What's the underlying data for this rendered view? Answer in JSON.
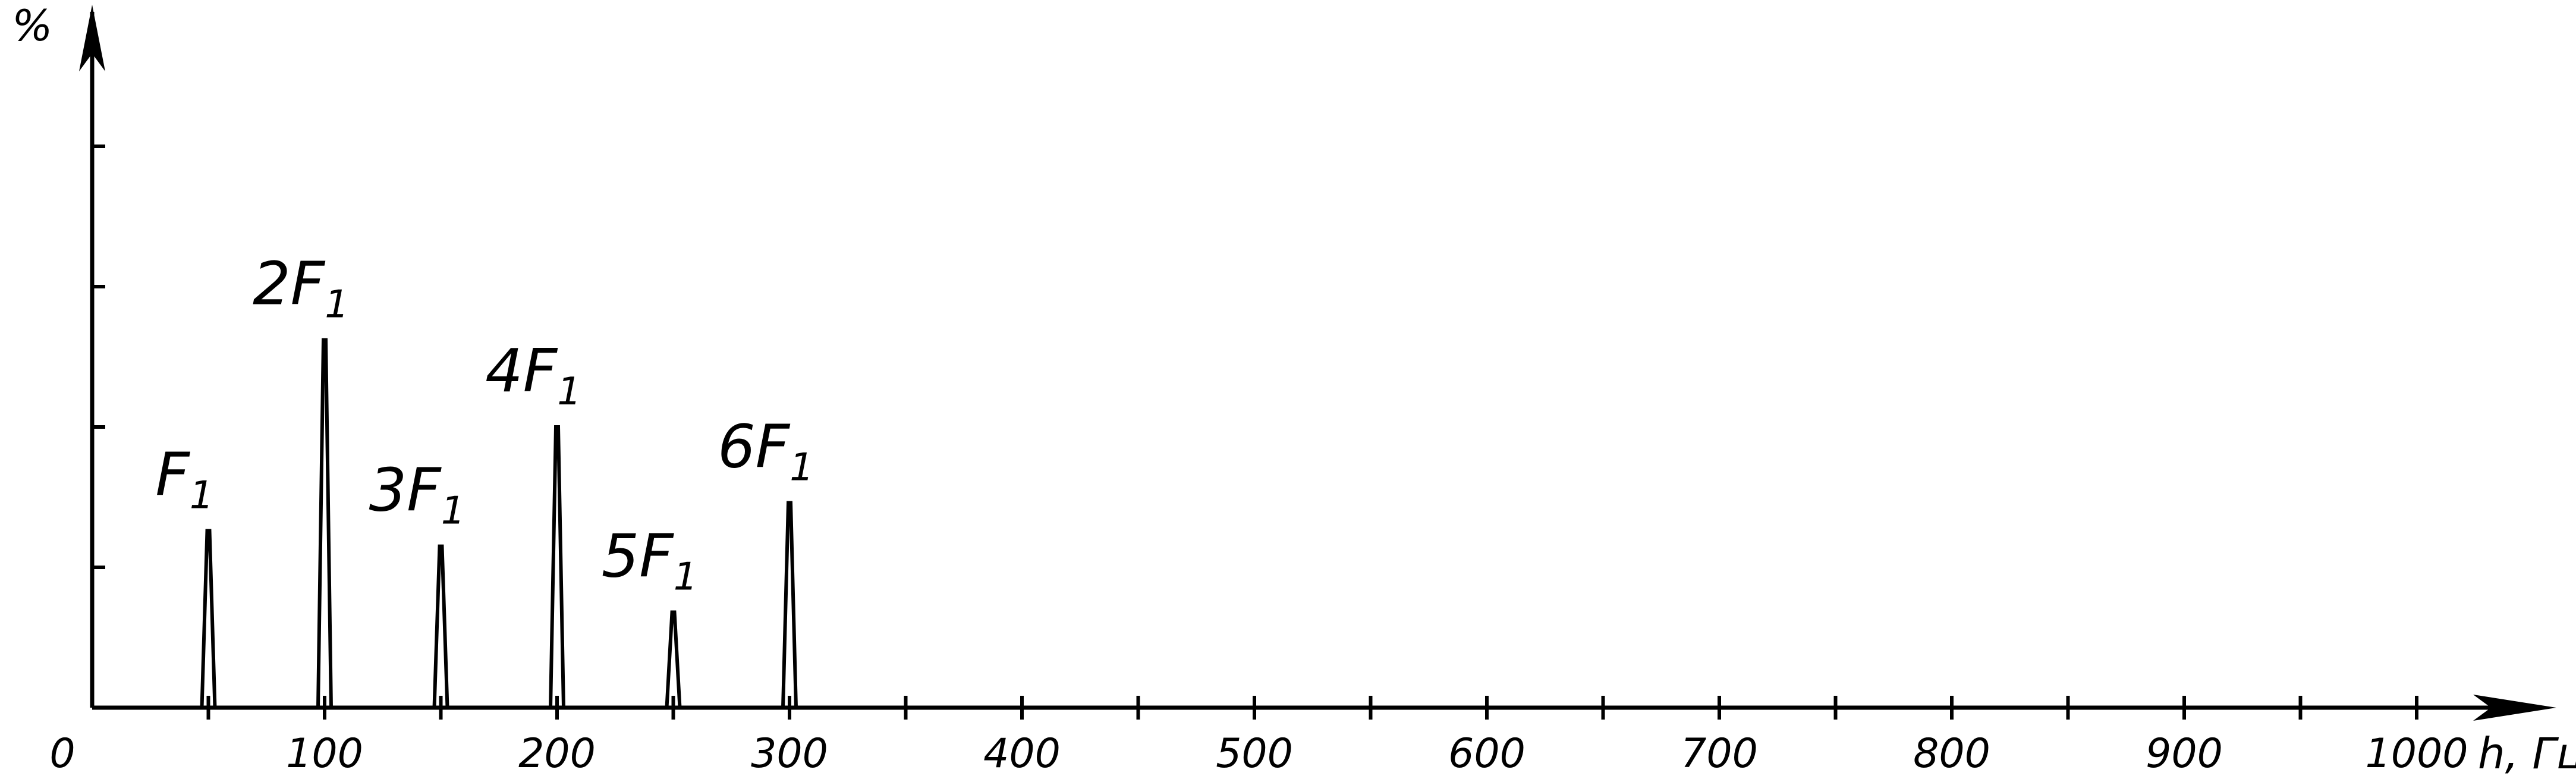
{
  "chart_data": {
    "type": "bar",
    "title": "",
    "xlabel": "h, Гц",
    "ylabel": "%",
    "xlim": [
      0,
      1050
    ],
    "ylim": [
      0,
      5
    ],
    "x_ticks": [
      0,
      100,
      200,
      300,
      400,
      500,
      600,
      700,
      800,
      900,
      1000
    ],
    "x_minor_ticks": [
      50,
      150,
      250,
      350,
      450,
      550,
      650,
      750,
      850,
      950
    ],
    "y_ticks": [
      1,
      2,
      3,
      4
    ],
    "grid": false,
    "legend": "none",
    "peaks": [
      {
        "label": "F",
        "sub": "1",
        "x": 50,
        "y": 1.26
      },
      {
        "label": "2F",
        "sub": "1",
        "x": 100,
        "y": 2.62
      },
      {
        "label": "3F",
        "sub": "1",
        "x": 150,
        "y": 1.15
      },
      {
        "label": "4F",
        "sub": "1",
        "x": 200,
        "y": 2.0
      },
      {
        "label": "5F",
        "sub": "1",
        "x": 250,
        "y": 0.68
      },
      {
        "label": "6F",
        "sub": "1",
        "x": 300,
        "y": 1.46
      }
    ]
  }
}
